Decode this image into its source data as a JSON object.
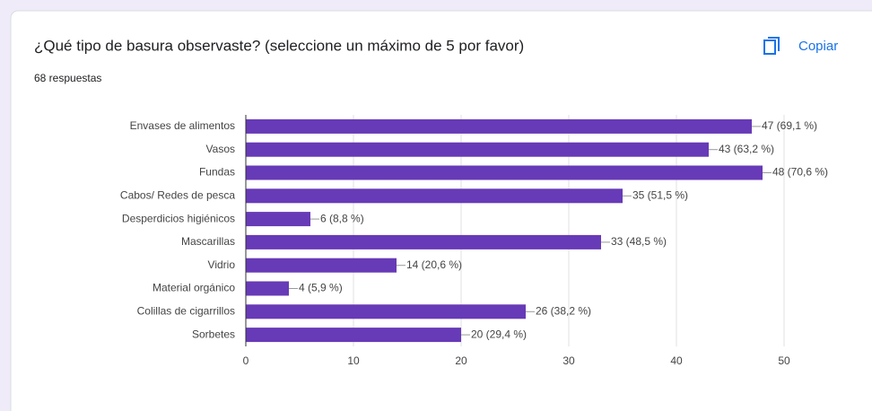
{
  "chart_data": {
    "type": "barh",
    "title": "¿Qué tipo de basura observaste? (seleccione un máximo de 5 por favor)",
    "subtitle": "68 respuestas",
    "categories": [
      "Envases de alimentos",
      "Vasos",
      "Fundas",
      "Cabos/ Redes de pesca",
      "Desperdicios higiénicos",
      "Mascarillas",
      "Vidrio",
      "Material orgánico",
      "Colillas de cigarrillos",
      "Sorbetes"
    ],
    "values": [
      47,
      43,
      48,
      35,
      6,
      33,
      14,
      4,
      26,
      20
    ],
    "value_labels": [
      "47 (69,1 %)",
      "43 (63,2 %)",
      "48 (70,6 %)",
      "35 (51,5 %)",
      "6 (8,8 %)",
      "33 (48,5 %)",
      "14 (20,6 %)",
      "4 (5,9 %)",
      "26 (38,2 %)",
      "20 (29,4 %)"
    ],
    "color": "#673ab7",
    "xlim": [
      0,
      50
    ],
    "xticks": [
      0,
      10,
      20,
      30,
      40,
      50
    ],
    "grid": true
  },
  "copy_label": "Copiar"
}
